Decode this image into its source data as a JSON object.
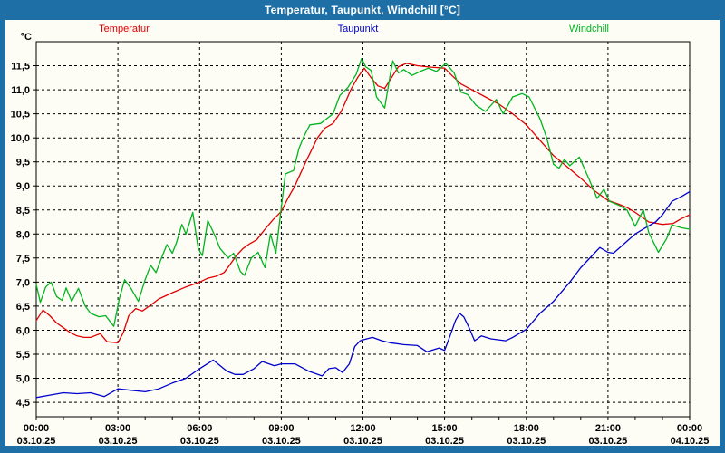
{
  "window": {
    "title": "Temperatur, Taupunkt, Windchill [°C]"
  },
  "legend": [
    {
      "label": "Temperatur",
      "color": "#E00000"
    },
    {
      "label": "Taupunkt",
      "color": "#0000CC"
    },
    {
      "label": "Windchill",
      "color": "#00B41E"
    }
  ],
  "colors": {
    "frame_blue": "#1E6FA5",
    "panel_background": "#FDFDF6",
    "grid": "#000000"
  },
  "chart_data": {
    "type": "line",
    "title": "Temperatur, Taupunkt, Windchill [°C]",
    "grid": "dashed",
    "legend_position": "top",
    "x_axis": {
      "range": [
        0,
        24
      ],
      "minor_tick_hours": 1,
      "ticks": [
        {
          "h": 0,
          "time": "00:00",
          "date": "03.10.25"
        },
        {
          "h": 3,
          "time": "03:00",
          "date": "03.10.25"
        },
        {
          "h": 6,
          "time": "06:00",
          "date": "03.10.25"
        },
        {
          "h": 9,
          "time": "09:00",
          "date": "03.10.25"
        },
        {
          "h": 12,
          "time": "12:00",
          "date": "03.10.25"
        },
        {
          "h": 15,
          "time": "15:00",
          "date": "03.10.25"
        },
        {
          "h": 18,
          "time": "18:00",
          "date": "03.10.25"
        },
        {
          "h": 21,
          "time": "21:00",
          "date": "03.10.25"
        },
        {
          "h": 24,
          "time": "00:00",
          "date": "04.10.25"
        }
      ]
    },
    "y_axis": {
      "unit": "°C",
      "range": [
        4.2,
        12.0
      ],
      "ticks": [
        4.5,
        5.0,
        5.5,
        6.0,
        6.5,
        7.0,
        7.5,
        8.0,
        8.5,
        9.0,
        9.5,
        10.0,
        10.5,
        11.0,
        11.5
      ],
      "tick_labels": [
        "4,5",
        "5,0",
        "5,5",
        "6,0",
        "6,5",
        "7,0",
        "7,5",
        "8,0",
        "8,5",
        "9,0",
        "9,5",
        "10,0",
        "10,5",
        "11,0",
        "11,5"
      ]
    },
    "series": [
      {
        "name": "Temperatur",
        "color": "#E00000",
        "x": [
          0,
          0.25,
          0.5,
          0.75,
          1,
          1.25,
          1.5,
          1.75,
          2,
          2.35,
          2.6,
          3,
          3.2,
          3.4,
          3.65,
          3.9,
          4.2,
          4.5,
          5,
          5.5,
          6,
          6.3,
          6.6,
          6.9,
          7.1,
          7.35,
          7.6,
          7.85,
          8.1,
          8.4,
          8.7,
          9,
          9.25,
          9.5,
          9.9,
          10.33,
          10.6,
          10.9,
          11.2,
          11.4,
          11.55,
          11.8,
          12.05,
          12.3,
          12.55,
          12.8,
          13.05,
          13.3,
          13.6,
          14,
          14.5,
          15,
          15.3,
          15.6,
          16,
          16.5,
          17,
          17.5,
          18,
          18.5,
          19,
          19.5,
          20,
          20.5,
          21,
          21.4,
          21.7,
          22,
          22.5,
          23,
          23.4,
          23.7,
          24
        ],
        "y": [
          6.2,
          6.42,
          6.3,
          6.15,
          6.05,
          5.95,
          5.88,
          5.85,
          5.85,
          5.93,
          5.76,
          5.74,
          5.95,
          6.3,
          6.45,
          6.4,
          6.52,
          6.65,
          6.78,
          6.9,
          7.0,
          7.08,
          7.12,
          7.2,
          7.35,
          7.55,
          7.7,
          7.8,
          7.88,
          8.1,
          8.3,
          8.47,
          8.75,
          9.0,
          9.5,
          10.0,
          10.2,
          10.3,
          10.55,
          10.8,
          11.0,
          11.25,
          11.45,
          11.25,
          11.08,
          11.03,
          11.25,
          11.48,
          11.55,
          11.5,
          11.47,
          11.45,
          11.28,
          11.12,
          11.0,
          10.85,
          10.7,
          10.5,
          10.27,
          9.95,
          9.63,
          9.4,
          9.16,
          8.9,
          8.7,
          8.62,
          8.55,
          8.45,
          8.25,
          8.2,
          8.22,
          8.32,
          8.4
        ]
      },
      {
        "name": "Taupunkt",
        "color": "#0000CC",
        "x": [
          0,
          0.5,
          1,
          1.5,
          2,
          2.5,
          3,
          3.5,
          4,
          4.5,
          5,
          5.5,
          6,
          6.5,
          7,
          7.3,
          7.6,
          8,
          8.3,
          8.75,
          9,
          9.5,
          10,
          10.5,
          10.75,
          11,
          11.25,
          11.5,
          11.7,
          11.9,
          12,
          12.35,
          12.7,
          13,
          13.5,
          14,
          14.35,
          14.8,
          15,
          15.2,
          15.4,
          15.55,
          15.7,
          15.9,
          16.1,
          16.35,
          16.7,
          17.25,
          17.5,
          18,
          18.5,
          19,
          19.6,
          20,
          20.5,
          20.7,
          21,
          21.2,
          21.7,
          22,
          22.35,
          22.75,
          23,
          23.35,
          23.7,
          24
        ],
        "y": [
          4.6,
          4.65,
          4.7,
          4.68,
          4.7,
          4.62,
          4.78,
          4.75,
          4.72,
          4.78,
          4.9,
          5.0,
          5.2,
          5.38,
          5.15,
          5.08,
          5.08,
          5.2,
          5.35,
          5.26,
          5.3,
          5.3,
          5.15,
          5.05,
          5.2,
          5.22,
          5.12,
          5.3,
          5.66,
          5.78,
          5.8,
          5.85,
          5.78,
          5.74,
          5.7,
          5.68,
          5.55,
          5.63,
          5.58,
          5.88,
          6.2,
          6.35,
          6.28,
          6.05,
          5.78,
          5.88,
          5.82,
          5.78,
          5.85,
          6.02,
          6.35,
          6.6,
          7.0,
          7.3,
          7.6,
          7.72,
          7.62,
          7.6,
          7.85,
          8.0,
          8.12,
          8.25,
          8.4,
          8.68,
          8.78,
          8.88
        ]
      },
      {
        "name": "Windchill",
        "color": "#00B41E",
        "x": [
          0,
          0.15,
          0.35,
          0.55,
          0.75,
          0.95,
          1.1,
          1.3,
          1.55,
          1.8,
          2,
          2.3,
          2.55,
          2.85,
          3.05,
          3.25,
          3.5,
          3.75,
          4,
          4.2,
          4.4,
          4.6,
          4.8,
          5,
          5.15,
          5.35,
          5.5,
          5.75,
          5.95,
          6.1,
          6.3,
          6.55,
          6.75,
          7.05,
          7.25,
          7.5,
          7.65,
          7.9,
          8.15,
          8.4,
          8.6,
          8.8,
          9,
          9.15,
          9.45,
          9.65,
          9.85,
          10.05,
          10.45,
          10.9,
          11.15,
          11.45,
          11.75,
          11.95,
          12.1,
          12.3,
          12.5,
          12.8,
          13,
          13.1,
          13.3,
          13.5,
          13.8,
          14.1,
          14.4,
          14.7,
          15.05,
          15.35,
          15.6,
          15.85,
          16.15,
          16.5,
          16.9,
          17.15,
          17.5,
          17.85,
          18.1,
          18.5,
          18.75,
          19,
          19.2,
          19.4,
          19.6,
          19.95,
          20.3,
          20.6,
          20.85,
          21.05,
          21.4,
          21.7,
          22,
          22.3,
          22.5,
          22.85,
          23.15,
          23.35,
          23.7,
          24
        ],
        "y": [
          6.95,
          6.58,
          6.9,
          7.0,
          6.7,
          6.62,
          6.88,
          6.6,
          6.87,
          6.5,
          6.35,
          6.28,
          6.3,
          6.08,
          6.65,
          7.05,
          6.85,
          6.6,
          7.05,
          7.35,
          7.2,
          7.5,
          7.78,
          7.6,
          7.82,
          8.2,
          8.0,
          8.45,
          7.7,
          7.55,
          8.28,
          7.98,
          7.7,
          7.5,
          7.6,
          7.22,
          7.14,
          7.5,
          7.62,
          7.3,
          8.0,
          7.6,
          8.55,
          9.25,
          9.32,
          9.78,
          10.05,
          10.27,
          10.3,
          10.5,
          10.88,
          11.05,
          11.32,
          11.65,
          11.48,
          11.4,
          10.85,
          10.62,
          11.3,
          11.6,
          11.35,
          11.42,
          11.3,
          11.38,
          11.45,
          11.38,
          11.55,
          11.35,
          10.95,
          10.9,
          10.68,
          10.55,
          10.8,
          10.5,
          10.85,
          10.92,
          10.85,
          10.4,
          10.0,
          9.45,
          9.37,
          9.55,
          9.42,
          9.6,
          9.15,
          8.74,
          8.93,
          8.68,
          8.6,
          8.5,
          8.16,
          8.5,
          8.03,
          7.62,
          7.9,
          8.19,
          8.13,
          8.1
        ]
      }
    ]
  }
}
